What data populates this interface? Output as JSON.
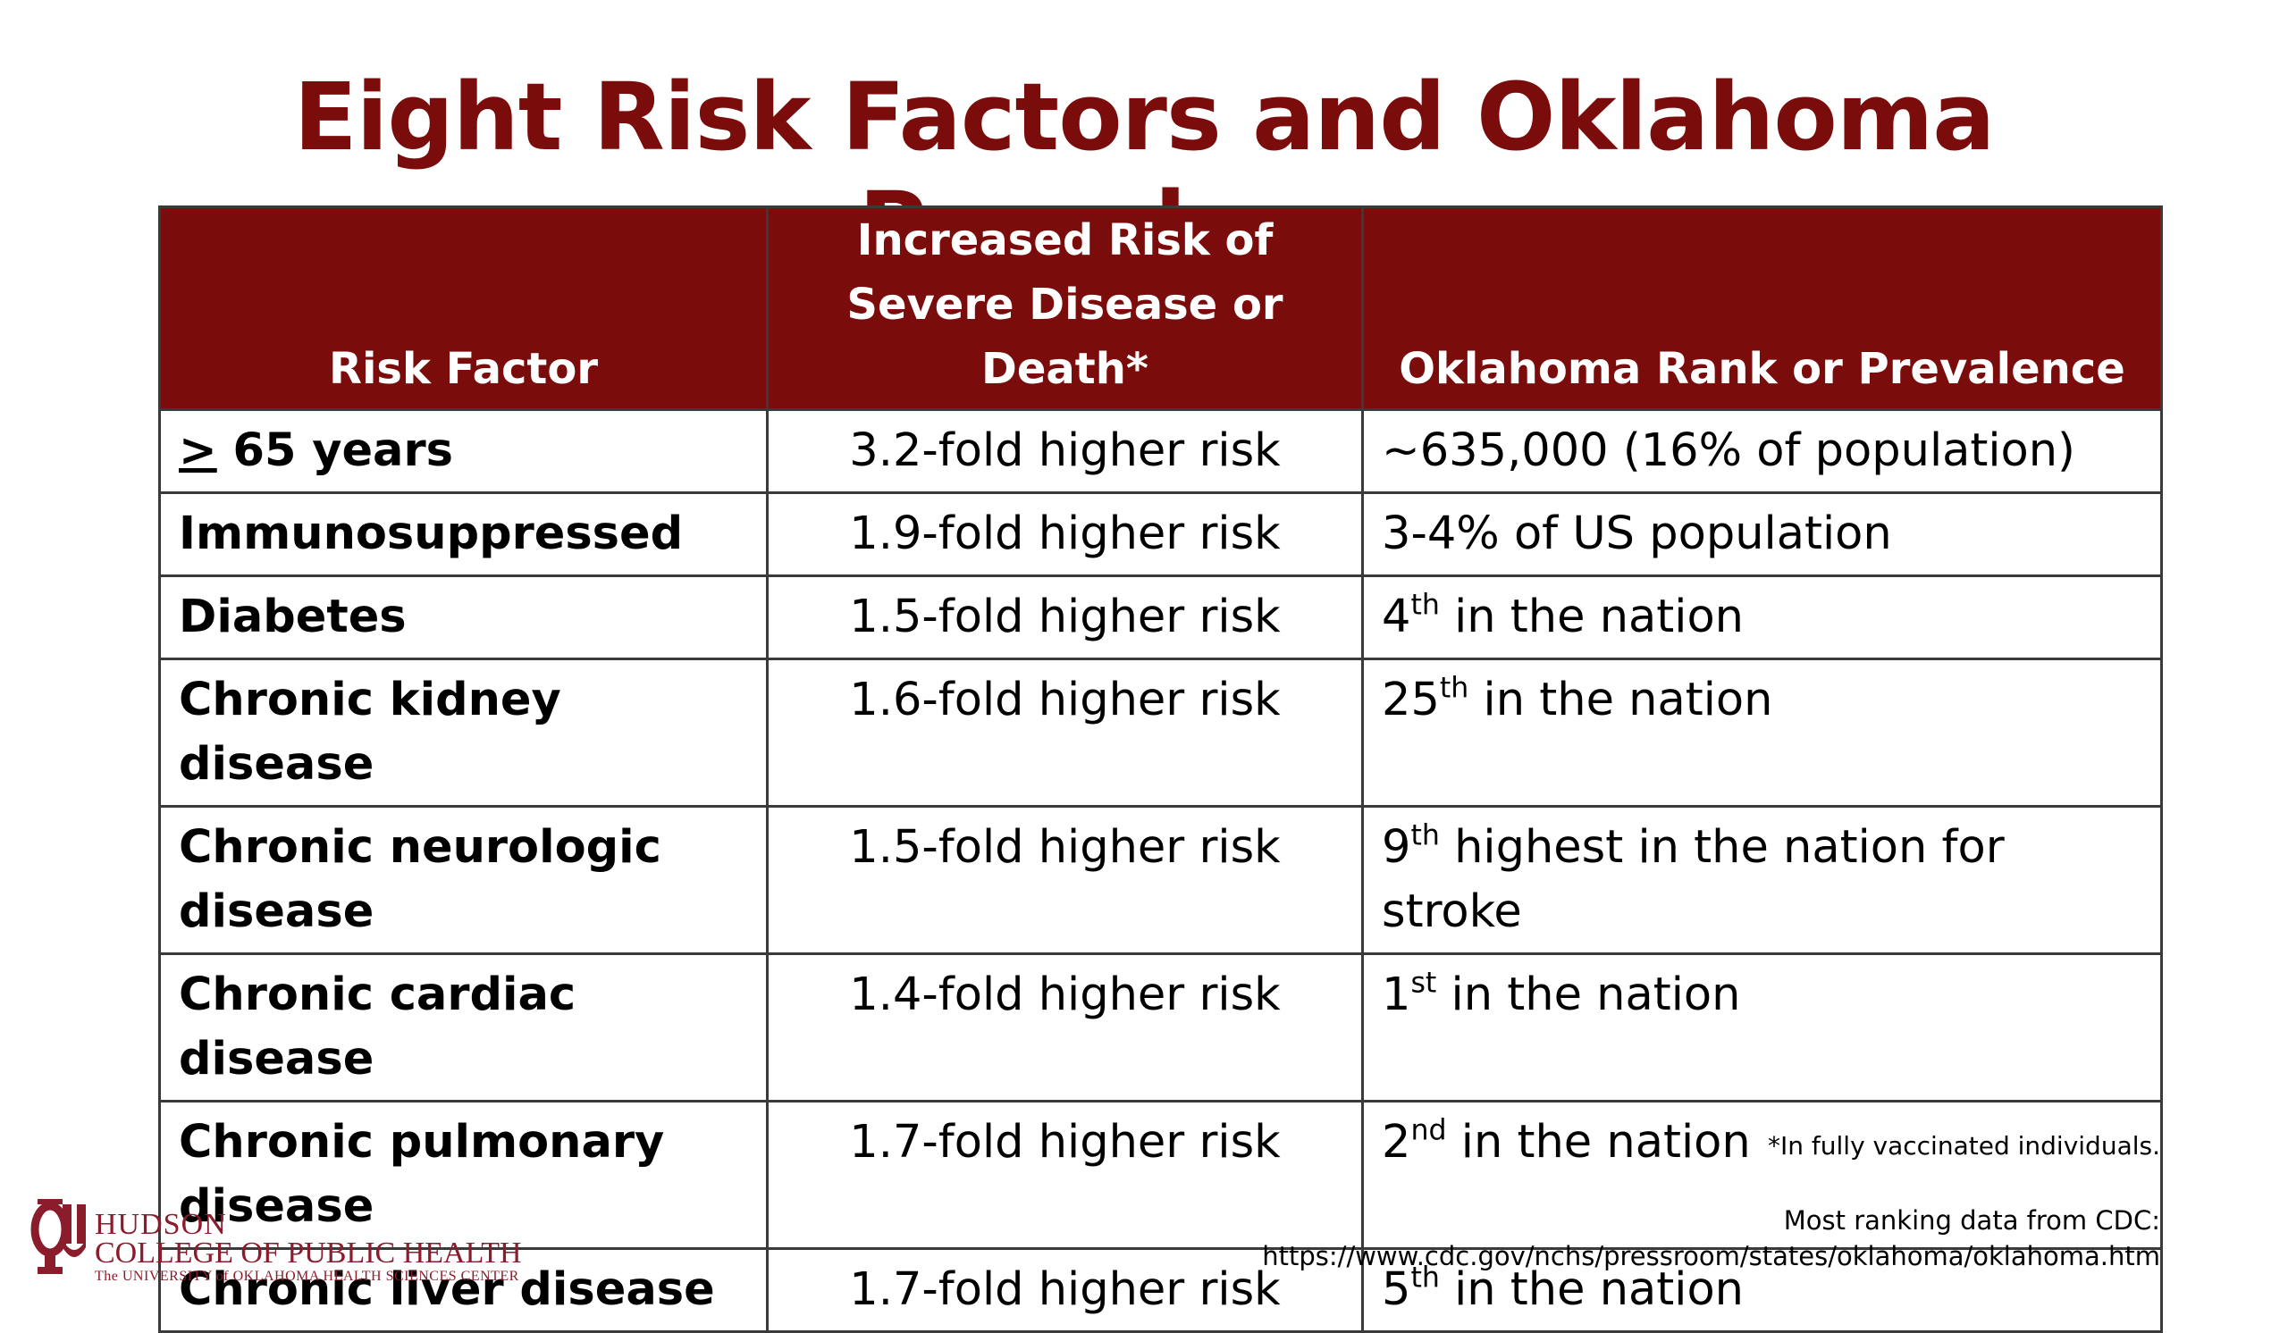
{
  "title": "Eight Risk Factors and Oklahoma Prevalence",
  "table": {
    "headers": {
      "factor": "Risk Factor",
      "risk": "Increased Risk of Severe Disease or Death*",
      "prevalence": "Oklahoma Rank or Prevalence"
    },
    "rows": [
      {
        "factor_symbol": ">",
        "factor": " 65 years",
        "risk": "3.2-fold higher risk",
        "prevalence_num": "~635,000 (16% of population)",
        "prevalence_sup": "",
        "prevalence_rest": ""
      },
      {
        "factor_symbol": "",
        "factor": "Immunosuppressed",
        "risk": "1.9-fold higher risk",
        "prevalence_num": "3-4% of US population",
        "prevalence_sup": "",
        "prevalence_rest": ""
      },
      {
        "factor_symbol": "",
        "factor": "Diabetes",
        "risk": "1.5-fold higher risk",
        "prevalence_num": "4",
        "prevalence_sup": "th",
        "prevalence_rest": " in the nation"
      },
      {
        "factor_symbol": "",
        "factor": "Chronic kidney disease",
        "risk": "1.6-fold higher risk",
        "prevalence_num": "25",
        "prevalence_sup": "th",
        "prevalence_rest": " in the nation"
      },
      {
        "factor_symbol": "",
        "factor": "Chronic neurologic disease",
        "risk": "1.5-fold higher risk",
        "prevalence_num": "9",
        "prevalence_sup": "th",
        "prevalence_rest": " highest in the nation for stroke"
      },
      {
        "factor_symbol": "",
        "factor": "Chronic cardiac disease",
        "risk": "1.4-fold higher risk",
        "prevalence_num": "1",
        "prevalence_sup": "st",
        "prevalence_rest": " in the nation"
      },
      {
        "factor_symbol": "",
        "factor": "Chronic pulmonary disease",
        "risk": "1.7-fold higher risk",
        "prevalence_num": "2",
        "prevalence_sup": "nd",
        "prevalence_rest": " in the nation"
      },
      {
        "factor_symbol": "",
        "factor": "Chronic liver disease",
        "risk": "1.7-fold higher risk",
        "prevalence_num": "5",
        "prevalence_sup": "th",
        "prevalence_rest": " in the nation"
      }
    ]
  },
  "footnote": "*In fully vaccinated individuals.",
  "source": {
    "line1": "Most ranking data from CDC:",
    "line2": "https://www.cdc.gov/nchs/pressroom/states/oklahoma/oklahoma.htm"
  },
  "logo": {
    "line1": "HUDSON",
    "line2": "COLLEGE OF PUBLIC HEALTH",
    "line3": "The UNIVERSITY of OKLAHOMA HEALTH SCIENCES CENTER",
    "color": "#8a1c2c"
  },
  "colors": {
    "title": "#7b0c0c",
    "header_bg": "#7b0c0c",
    "header_text": "#ffffff"
  }
}
